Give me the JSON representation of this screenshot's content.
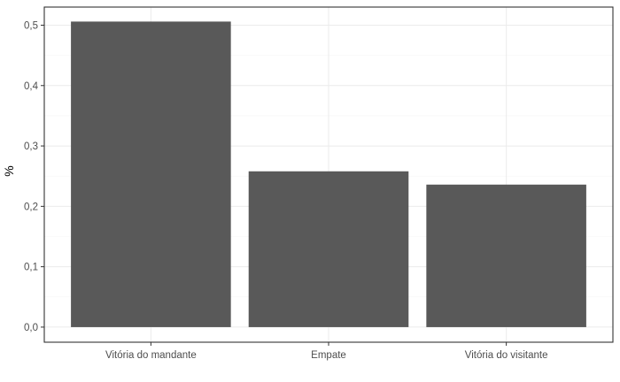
{
  "chart_data": {
    "type": "bar",
    "title": "",
    "xlabel": "",
    "ylabel": "%",
    "categories": [
      "Vitória do mandante",
      "Empate",
      "Vitória do visitante"
    ],
    "values": [
      0.506,
      0.258,
      0.236
    ],
    "ylim": [
      -0.025,
      0.53
    ],
    "yticks": [
      0.0,
      0.1,
      0.2,
      0.3,
      0.4,
      0.5
    ],
    "ytick_labels": [
      "0,0",
      "0,1",
      "0,2",
      "0,3",
      "0,4",
      "0,5"
    ],
    "grid": true,
    "theme": "bw",
    "bar_color": "#595959",
    "panel_border_color": "#333333"
  }
}
